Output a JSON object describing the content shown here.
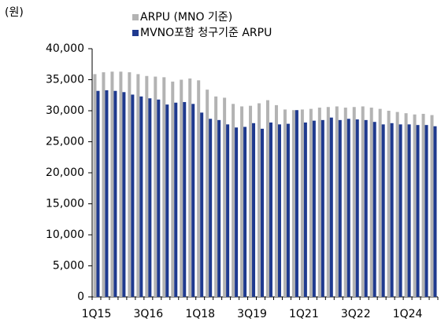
{
  "chart_data": {
    "type": "bar",
    "unit_label": "(원)",
    "categories": [
      "1Q15",
      null,
      null,
      null,
      null,
      null,
      "3Q16",
      null,
      null,
      null,
      null,
      null,
      "1Q18",
      null,
      null,
      null,
      null,
      null,
      "3Q19",
      null,
      null,
      null,
      null,
      null,
      "1Q21",
      null,
      null,
      null,
      null,
      null,
      "3Q22",
      null,
      null,
      null,
      null,
      null,
      "1Q24",
      null,
      null,
      null
    ],
    "series": [
      {
        "name": "ARPU (MNO 기준)",
        "color": "#b3b3b3",
        "values": [
          35900,
          36200,
          36300,
          36300,
          36200,
          35900,
          35600,
          35500,
          35400,
          34700,
          35000,
          35200,
          34900,
          33400,
          32300,
          32100,
          31100,
          30700,
          30800,
          31200,
          31700,
          30900,
          30200,
          30100,
          30200,
          30300,
          30500,
          30600,
          30700,
          30500,
          30600,
          30700,
          30500,
          30300,
          30000,
          29800,
          29600,
          29400,
          29500,
          29300
        ]
      },
      {
        "name": "MVNO포함 청구기준 ARPU",
        "color": "#1f3a8f",
        "values": [
          33200,
          33300,
          33200,
          33000,
          32600,
          32300,
          32000,
          31800,
          31000,
          31300,
          31400,
          31100,
          29700,
          28700,
          28500,
          27800,
          27300,
          27400,
          28000,
          27100,
          28100,
          27800,
          27900,
          30100,
          28100,
          28400,
          28500,
          28900,
          28500,
          28700,
          28600,
          28500,
          28200,
          27800,
          28000,
          27800,
          27800,
          27700,
          27700,
          27500
        ]
      }
    ],
    "ylim": [
      0,
      40000
    ],
    "yticks": [
      0,
      {
        "value": 5000,
        "label": "5,000"
      },
      {
        "value": 10000,
        "label": "10,000"
      },
      {
        "value": 15000,
        "label": "15,000"
      },
      {
        "value": 20000,
        "label": "20,000"
      },
      {
        "value": 25000,
        "label": "25,000"
      },
      {
        "value": 30000,
        "label": "30,000"
      },
      {
        "value": 35000,
        "label": "35,000"
      },
      {
        "value": 40000,
        "label": "40,000"
      }
    ],
    "grid": false
  }
}
